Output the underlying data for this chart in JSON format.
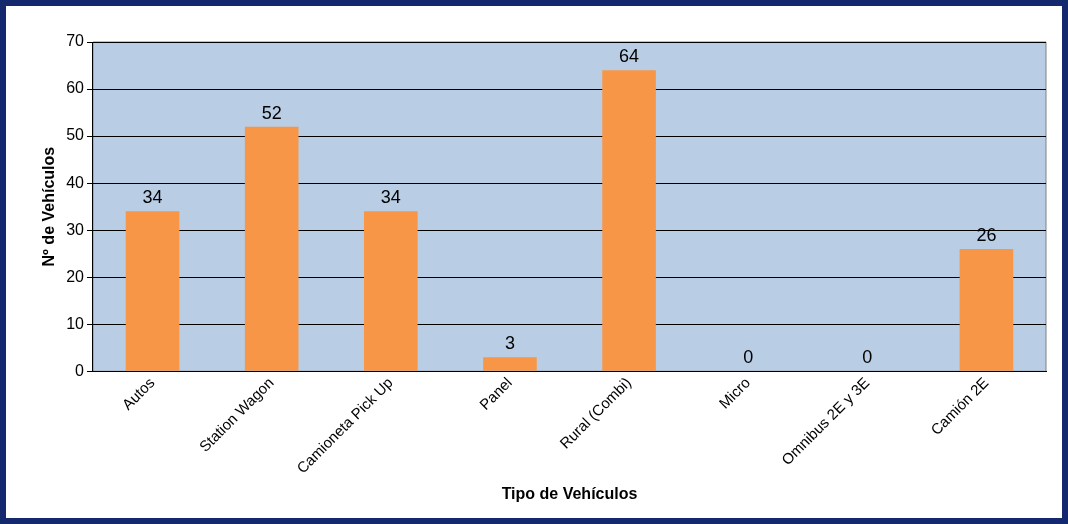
{
  "chart_data": {
    "type": "bar",
    "xlabel": "Tipo de Vehículos",
    "ylabel": "Nº de Vehículos",
    "categories": [
      "Autos",
      "Station Wagon",
      "Camioneta Pick Up",
      "Panel",
      "Rural (Combi)",
      "Micro",
      "Omnibus 2E y 3E",
      "Camión 2E"
    ],
    "values": [
      34,
      52,
      34,
      3,
      64,
      0,
      0,
      26
    ],
    "color": "#f79646",
    "ylim": [
      0,
      70
    ],
    "yticks": [
      0,
      10,
      20,
      30,
      40,
      50,
      60,
      70
    ],
    "grid": "y",
    "legend": false,
    "data_labels": true
  }
}
